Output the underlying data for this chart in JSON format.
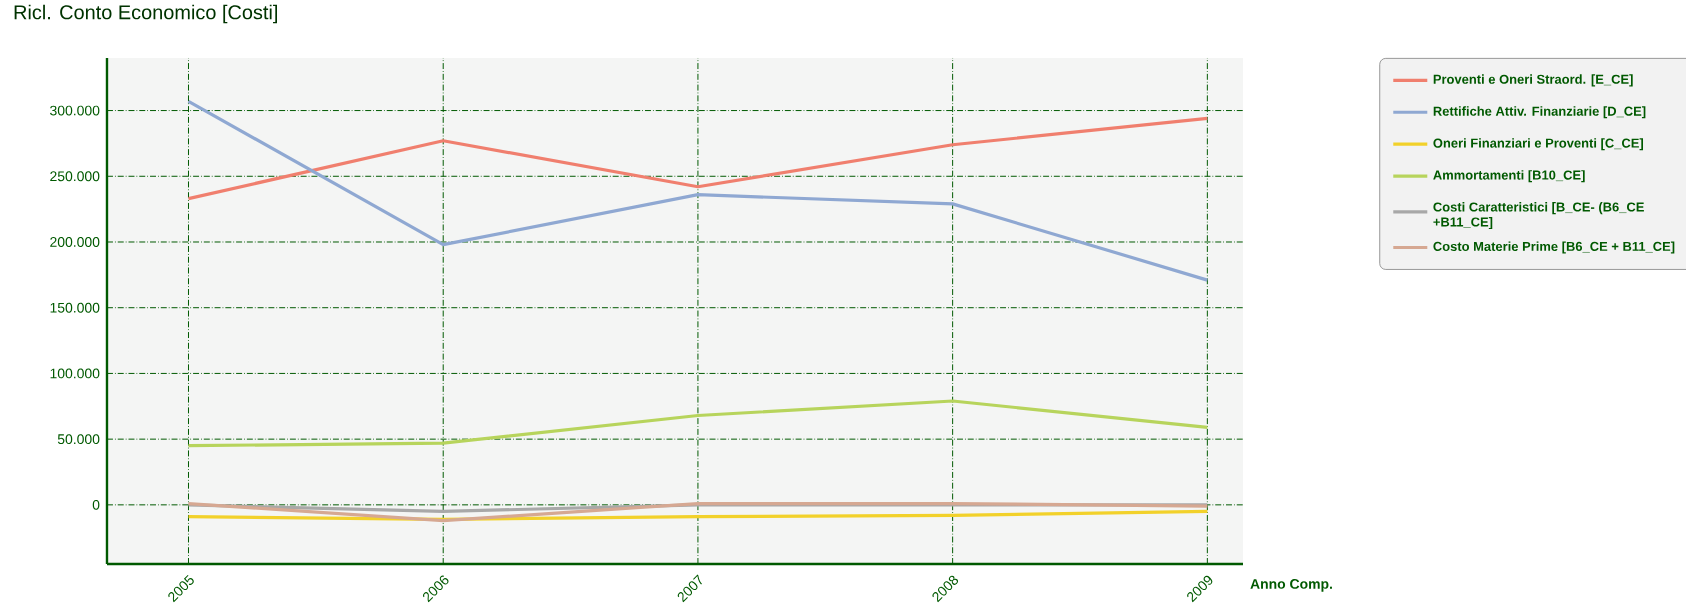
{
  "chart_data": {
    "type": "line",
    "title": "Ricl. Conto Economico [Costi]",
    "xlabel": "Anno Comp.",
    "categories": [
      "2005",
      "2006",
      "2007",
      "2008",
      "2009"
    ],
    "series": [
      {
        "name": "Proventi e Oneri Straord. [E_CE]",
        "color": "#f07f6e",
        "values": [
          233000,
          277000,
          242000,
          274000,
          294000
        ]
      },
      {
        "name": "Rettifiche Attiv. Finanziarie [D_CE]",
        "color": "#8fa8d2",
        "values": [
          307000,
          198000,
          236000,
          229000,
          171000
        ]
      },
      {
        "name": "Oneri Finanziari e Proventi [C_CE]",
        "color": "#f2d12a",
        "values": [
          -9000,
          -11000,
          -9000,
          -8000,
          -5000
        ]
      },
      {
        "name": "Ammortamenti    [B10_CE]",
        "color": "#b7d45c",
        "values": [
          45000,
          47000,
          68000,
          79000,
          59000
        ]
      },
      {
        "name": "Costi Caratteristici [B_CE- (B6_CE +B11_CE]",
        "color": "#a8a8a8",
        "values": [
          0,
          -5000,
          0,
          0,
          0
        ]
      },
      {
        "name": "Costo Materie Prime [B6_CE + B11_CE]",
        "color": "#d6a892",
        "values": [
          1000,
          -12000,
          1000,
          1000,
          -1000
        ]
      }
    ],
    "ylim": [
      -45000,
      340000
    ],
    "yticks": [
      0,
      {
        "value": 50000,
        "label": "50.000"
      },
      {
        "value": 100000,
        "label": "100.000"
      },
      {
        "value": 150000,
        "label": "150.000"
      },
      {
        "value": 200000,
        "label": "200.000"
      },
      {
        "value": 250000,
        "label": "250.000"
      },
      {
        "value": 300000,
        "label": "300.000"
      }
    ],
    "grid": true,
    "legend": "right",
    "marker": "none"
  }
}
